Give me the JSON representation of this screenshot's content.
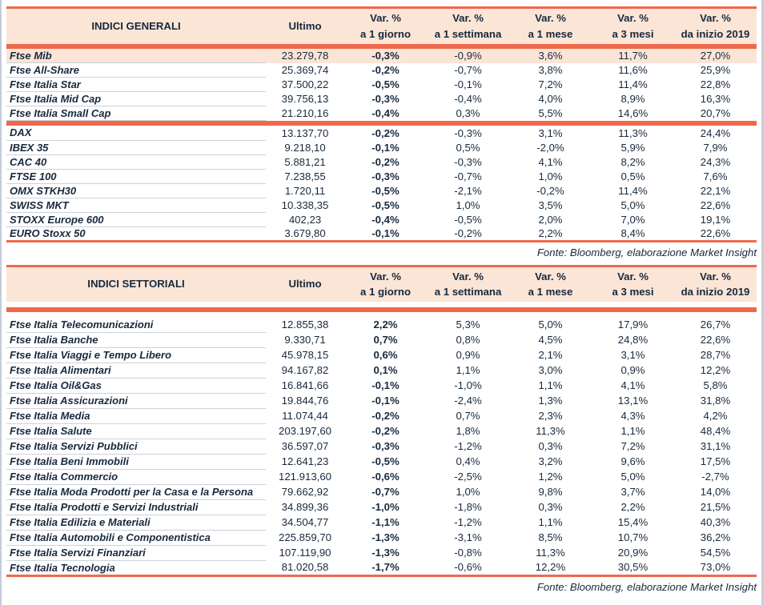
{
  "colors": {
    "border_accent": "#ee694c",
    "header_fill": "#fbe5d6",
    "text": "#17293d",
    "row_separator": "#ccd2da",
    "page_edge": "#c3ccd9"
  },
  "tables": [
    {
      "title": "INDICI GENERALI",
      "ultimo_header": "Ultimo",
      "var_headers": [
        {
          "line1": "Var. %",
          "line2": "a 1 giorno"
        },
        {
          "line1": "Var. %",
          "line2": "a 1 settimana"
        },
        {
          "line1": "Var. %",
          "line2": "a 1 mese"
        },
        {
          "line1": "Var. %",
          "line2": "a 3 mesi"
        },
        {
          "line1": "Var. %",
          "line2": "da inizio 2019"
        }
      ],
      "source_note": "Fonte: Bloomberg, elaborazione Market Insight",
      "groups": [
        [
          {
            "name": "Ftse Mib",
            "highlight": true,
            "values": [
              "23.279,78",
              "-0,3%",
              "-0,9%",
              "3,6%",
              "11,7%",
              "27,0%"
            ]
          },
          {
            "name": "Ftse All-Share",
            "values": [
              "25.369,74",
              "-0,2%",
              "-0,7%",
              "3,8%",
              "11,6%",
              "25,9%"
            ]
          },
          {
            "name": "Ftse Italia Star",
            "values": [
              "37.500,22",
              "-0,5%",
              "-0,1%",
              "7,2%",
              "11,4%",
              "22,8%"
            ]
          },
          {
            "name": "Ftse Italia Mid Cap",
            "values": [
              "39.756,13",
              "-0,3%",
              "-0,4%",
              "4,0%",
              "8,9%",
              "16,3%"
            ]
          },
          {
            "name": "Ftse Italia Small Cap",
            "values": [
              "21.210,16",
              "-0,4%",
              "0,3%",
              "5,5%",
              "14,6%",
              "20,7%"
            ]
          }
        ],
        [
          {
            "name": "DAX",
            "values": [
              "13.137,70",
              "-0,2%",
              "-0,3%",
              "3,1%",
              "11,3%",
              "24,4%"
            ]
          },
          {
            "name": "IBEX 35",
            "values": [
              "9.218,10",
              "-0,1%",
              "0,5%",
              "-2,0%",
              "5,9%",
              "7,9%"
            ]
          },
          {
            "name": "CAC 40",
            "values": [
              "5.881,21",
              "-0,2%",
              "-0,3%",
              "4,1%",
              "8,2%",
              "24,3%"
            ]
          },
          {
            "name": "FTSE 100",
            "values": [
              "7.238,55",
              "-0,3%",
              "-0,7%",
              "1,0%",
              "0,5%",
              "7,6%"
            ]
          },
          {
            "name": "OMX STKH30",
            "values": [
              "1.720,11",
              "-0,5%",
              "-2,1%",
              "-0,2%",
              "11,4%",
              "22,1%"
            ]
          },
          {
            "name": "SWISS MKT",
            "values": [
              "10.338,35",
              "-0,5%",
              "1,0%",
              "3,5%",
              "5,0%",
              "22,6%"
            ]
          },
          {
            "name": "STOXX Europe 600",
            "values": [
              "402,23",
              "-0,4%",
              "-0,5%",
              "2,0%",
              "7,0%",
              "19,1%"
            ]
          },
          {
            "name": "EURO Stoxx 50",
            "values": [
              "3.679,80",
              "-0,1%",
              "-0,2%",
              "2,2%",
              "8,4%",
              "22,6%"
            ]
          }
        ]
      ]
    },
    {
      "title": "INDICI SETTORIALI",
      "ultimo_header": "Ultimo",
      "var_headers": [
        {
          "line1": "Var. %",
          "line2": "a 1 giorno"
        },
        {
          "line1": "Var. %",
          "line2": "a 1 settimana"
        },
        {
          "line1": "Var. %",
          "line2": "a 1 mese"
        },
        {
          "line1": "Var. %",
          "line2": "a 3 mesi"
        },
        {
          "line1": "Var. %",
          "line2": "da inizio 2019"
        }
      ],
      "source_note": "Fonte: Bloomberg, elaborazione Market Insight",
      "groups": [
        [
          {
            "name": "Ftse Italia Telecomunicazioni",
            "values": [
              "12.855,38",
              "2,2%",
              "5,3%",
              "5,0%",
              "17,9%",
              "26,7%"
            ]
          },
          {
            "name": "Ftse Italia Banche",
            "values": [
              "9.330,71",
              "0,7%",
              "0,8%",
              "4,5%",
              "24,8%",
              "22,6%"
            ]
          },
          {
            "name": "Ftse Italia Viaggi e Tempo Libero",
            "values": [
              "45.978,15",
              "0,6%",
              "0,9%",
              "2,1%",
              "3,1%",
              "28,7%"
            ]
          },
          {
            "name": "Ftse Italia Alimentari",
            "values": [
              "94.167,82",
              "0,1%",
              "1,1%",
              "3,0%",
              "0,9%",
              "12,2%"
            ]
          },
          {
            "name": "Ftse Italia Oil&Gas",
            "values": [
              "16.841,66",
              "-0,1%",
              "-1,0%",
              "1,1%",
              "4,1%",
              "5,8%"
            ]
          },
          {
            "name": "Ftse Italia Assicurazioni",
            "values": [
              "19.844,76",
              "-0,1%",
              "-2,4%",
              "1,3%",
              "13,1%",
              "31,8%"
            ]
          },
          {
            "name": "Ftse Italia Media",
            "values": [
              "11.074,44",
              "-0,2%",
              "0,7%",
              "2,3%",
              "4,3%",
              "4,2%"
            ]
          },
          {
            "name": "Ftse Italia Salute",
            "values": [
              "203.197,60",
              "-0,2%",
              "1,8%",
              "11,3%",
              "1,1%",
              "48,4%"
            ]
          },
          {
            "name": "Ftse Italia Servizi Pubblici",
            "values": [
              "36.597,07",
              "-0,3%",
              "-1,2%",
              "0,3%",
              "7,2%",
              "31,1%"
            ]
          },
          {
            "name": "Ftse Italia Beni Immobili",
            "values": [
              "12.641,23",
              "-0,5%",
              "0,4%",
              "3,2%",
              "9,6%",
              "17,5%"
            ]
          },
          {
            "name": "Ftse Italia Commercio",
            "values": [
              "121.913,60",
              "-0,6%",
              "-2,5%",
              "1,2%",
              "5,0%",
              "-2,7%"
            ]
          },
          {
            "name": "Ftse Italia Moda Prodotti per la Casa e la Persona",
            "values": [
              "79.662,92",
              "-0,7%",
              "1,0%",
              "9,8%",
              "3,7%",
              "14,0%"
            ]
          },
          {
            "name": "Ftse Italia Prodotti e Servizi Industriali",
            "values": [
              "34.899,36",
              "-1,0%",
              "-1,8%",
              "0,3%",
              "2,2%",
              "21,5%"
            ]
          },
          {
            "name": "Ftse Italia Edilizia e Materiali",
            "values": [
              "34.504,77",
              "-1,1%",
              "-1,2%",
              "1,1%",
              "15,4%",
              "40,3%"
            ]
          },
          {
            "name": "Ftse Italia Automobili e Componentistica",
            "values": [
              "225.859,70",
              "-1,3%",
              "-3,1%",
              "8,5%",
              "10,7%",
              "36,2%"
            ]
          },
          {
            "name": "Ftse Italia Servizi Finanziari",
            "values": [
              "107.119,90",
              "-1,3%",
              "-0,8%",
              "11,3%",
              "20,9%",
              "54,5%"
            ]
          },
          {
            "name": "Ftse Italia Tecnologia",
            "values": [
              "81.020,58",
              "-1,7%",
              "-0,6%",
              "12,2%",
              "30,5%",
              "73,0%"
            ]
          }
        ]
      ]
    }
  ]
}
